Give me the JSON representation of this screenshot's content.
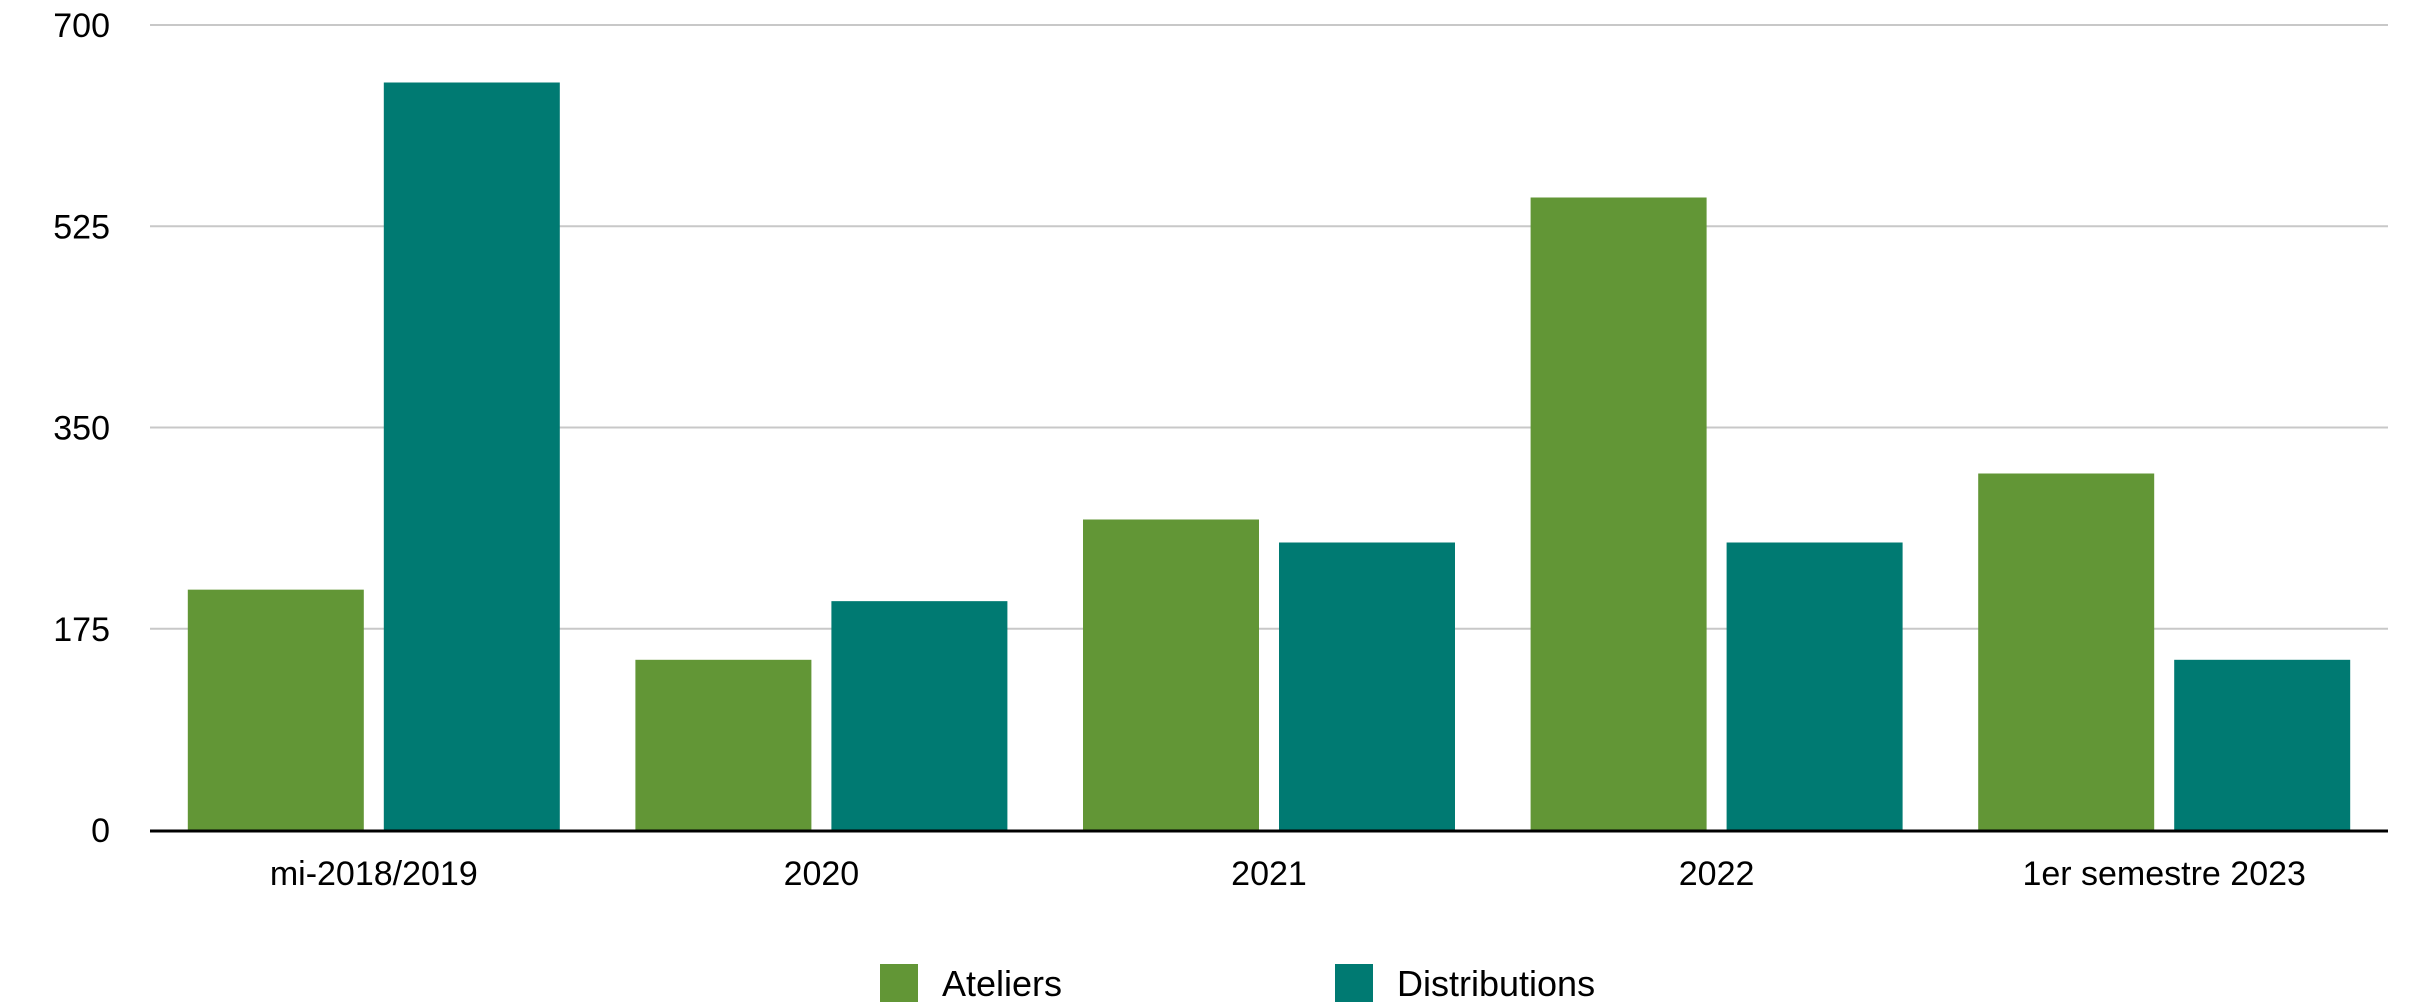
{
  "chart_data": {
    "type": "bar",
    "title": "",
    "xlabel": "",
    "ylabel": "",
    "categories": [
      "mi-2018/2019",
      "2020",
      "2021",
      "2022",
      "1er semestre 2023"
    ],
    "series": [
      {
        "name": "Ateliers",
        "color": "#629636",
        "values": [
          209,
          148,
          270,
          550,
          310
        ]
      },
      {
        "name": "Distributions",
        "color": "#007A72",
        "values": [
          650,
          199,
          250,
          250,
          148
        ]
      }
    ],
    "ylim": [
      0,
      700
    ],
    "yticks": [
      0,
      175,
      350,
      525,
      700
    ],
    "ytick_labels": [
      "0",
      "175",
      "350",
      "525",
      "700"
    ],
    "grid": true,
    "legend_position": "bottom-center"
  }
}
